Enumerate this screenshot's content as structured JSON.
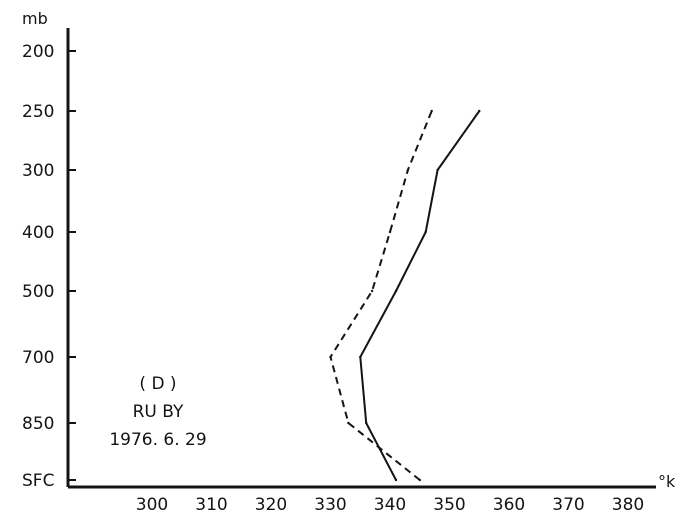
{
  "chart_data": {
    "type": "line",
    "title": "",
    "xlabel": "°k",
    "ylabel": "mb",
    "xlim": [
      290,
      385
    ],
    "x_ticks": [
      "300",
      "310",
      "320",
      "330",
      "340",
      "350",
      "360",
      "370",
      "380"
    ],
    "y_categories": [
      "SFC",
      "850",
      "700",
      "500",
      "400",
      "300",
      "250",
      "200"
    ],
    "grid": false,
    "annotation": {
      "label": "( D )",
      "name": "RU BY",
      "date": "1976. 6. 29"
    },
    "series": [
      {
        "style": "solid",
        "points": [
          {
            "x": 341,
            "y": "SFC"
          },
          {
            "x": 336,
            "y": "850"
          },
          {
            "x": 335,
            "y": "700"
          },
          {
            "x": 341,
            "y": "500"
          },
          {
            "x": 346,
            "y": "400"
          },
          {
            "x": 348,
            "y": "300"
          },
          {
            "x": 355,
            "y": "250"
          }
        ]
      },
      {
        "style": "dashed",
        "points": [
          {
            "x": 345,
            "y": "SFC"
          },
          {
            "x": 333,
            "y": "850"
          },
          {
            "x": 330,
            "y": "700"
          },
          {
            "x": 337,
            "y": "500"
          },
          {
            "x": 340,
            "y": "400"
          },
          {
            "x": 343,
            "y": "300"
          },
          {
            "x": 347,
            "y": "250"
          }
        ]
      }
    ],
    "colors": {
      "ink": "#141414",
      "background": "#ffffff"
    }
  }
}
